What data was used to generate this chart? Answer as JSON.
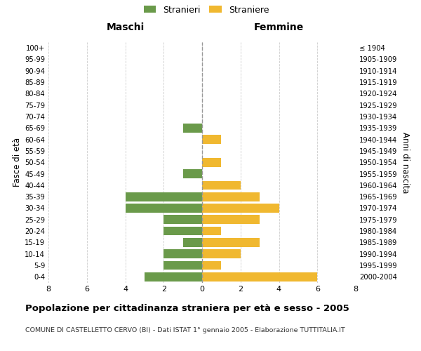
{
  "age_groups_bottom_to_top": [
    "0-4",
    "5-9",
    "10-14",
    "15-19",
    "20-24",
    "25-29",
    "30-34",
    "35-39",
    "40-44",
    "45-49",
    "50-54",
    "55-59",
    "60-64",
    "65-69",
    "70-74",
    "75-79",
    "80-84",
    "85-89",
    "90-94",
    "95-99",
    "100+"
  ],
  "birth_years_bottom_to_top": [
    "2000-2004",
    "1995-1999",
    "1990-1994",
    "1985-1989",
    "1980-1984",
    "1975-1979",
    "1970-1974",
    "1965-1969",
    "1960-1964",
    "1955-1959",
    "1950-1954",
    "1945-1949",
    "1940-1944",
    "1935-1939",
    "1930-1934",
    "1925-1929",
    "1920-1924",
    "1915-1919",
    "1910-1914",
    "1905-1909",
    "≤ 1904"
  ],
  "maschi_bottom_to_top": [
    3,
    2,
    2,
    1,
    2,
    2,
    4,
    4,
    0,
    1,
    0,
    0,
    0,
    1,
    0,
    0,
    0,
    0,
    0,
    0,
    0
  ],
  "femmine_bottom_to_top": [
    6,
    1,
    2,
    3,
    1,
    3,
    4,
    3,
    2,
    0,
    1,
    0,
    1,
    0,
    0,
    0,
    0,
    0,
    0,
    0,
    0
  ],
  "color_maschi": "#6a9a4a",
  "color_femmine": "#f0b830",
  "xlim": 8,
  "title": "Popolazione per cittadinanza straniera per età e sesso - 2005",
  "subtitle": "COMUNE DI CASTELLETTO CERVO (BI) - Dati ISTAT 1° gennaio 2005 - Elaborazione TUTTITALIA.IT",
  "ylabel_left": "Fasce di età",
  "ylabel_right": "Anni di nascita",
  "label_maschi": "Maschi",
  "label_femmine": "Femmine",
  "legend_stranieri": "Stranieri",
  "legend_straniere": "Straniere",
  "bg_color": "#ffffff",
  "grid_color": "#cccccc"
}
